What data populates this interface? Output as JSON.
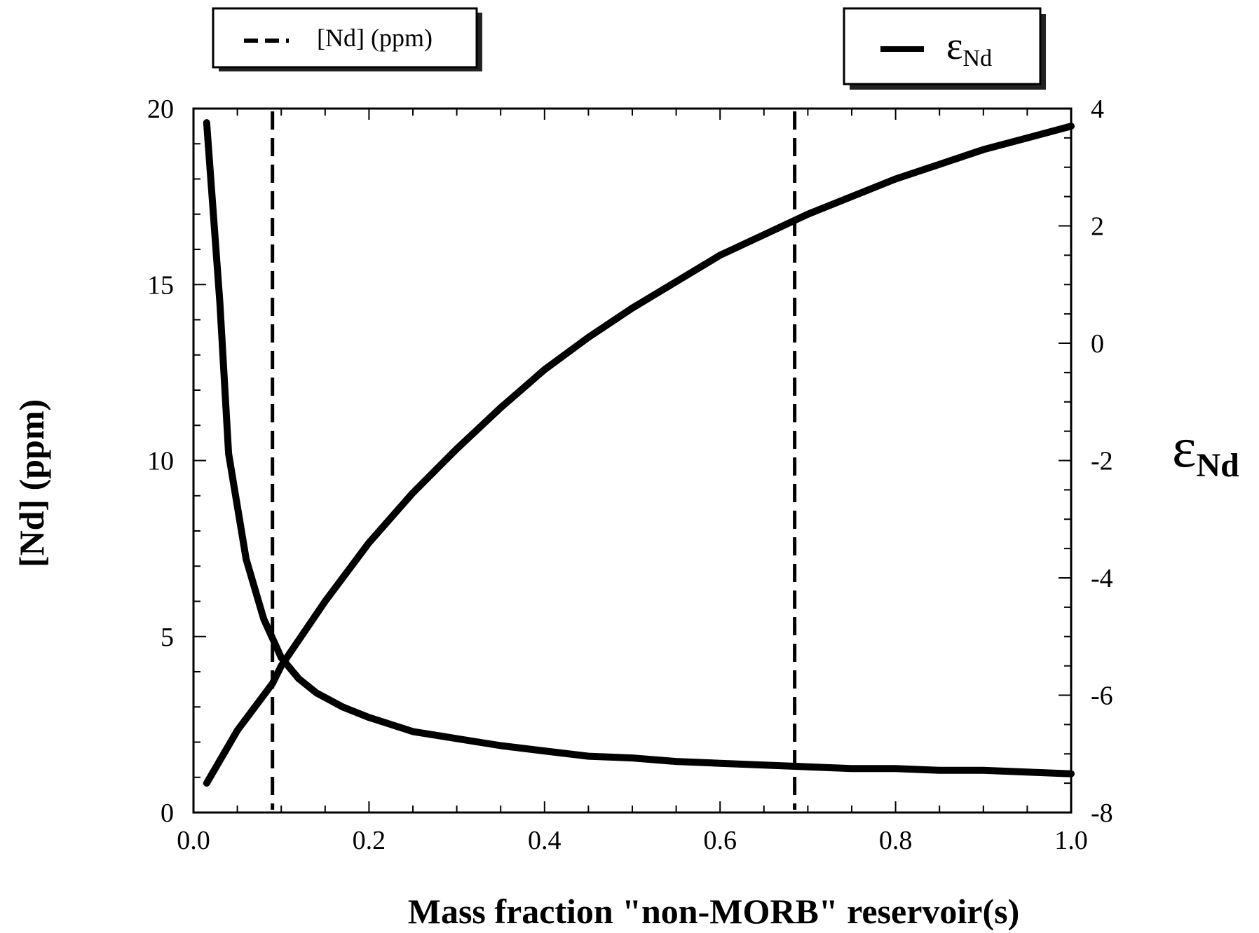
{
  "chart_data": {
    "type": "line",
    "xlabel": "Mass fraction \"non-MORB\" reservoir(s)",
    "ylabel_left": "[Nd] (ppm)",
    "ylabel_right_base": "ε",
    "ylabel_right_sub": "Nd",
    "xlim": [
      0.0,
      1.0
    ],
    "ylim_left": [
      0,
      20
    ],
    "ylim_right": [
      -8,
      4
    ],
    "x_ticks": [
      "0.0",
      "0.2",
      "0.4",
      "0.6",
      "0.8",
      "1.0"
    ],
    "x_tick_values": [
      0.0,
      0.2,
      0.4,
      0.6,
      0.8,
      1.0
    ],
    "y_left_ticks": [
      "0",
      "5",
      "10",
      "15",
      "20"
    ],
    "y_left_tick_values": [
      0,
      5,
      10,
      15,
      20
    ],
    "y_right_ticks": [
      "-8",
      "-6",
      "-4",
      "-2",
      "0",
      "2",
      "4"
    ],
    "y_right_tick_values": [
      -8,
      -6,
      -4,
      -2,
      0,
      2,
      4
    ],
    "legend_left": {
      "label": "[Nd] (ppm)",
      "position": "top-left"
    },
    "legend_right": {
      "label_base": "ε",
      "label_sub": "Nd",
      "position": "top-right"
    },
    "grid": false,
    "series": [
      {
        "name": "[Nd] (ppm)",
        "axis": "left",
        "x": [
          0.015,
          0.03,
          0.04,
          0.05,
          0.06,
          0.08,
          0.1,
          0.12,
          0.14,
          0.17,
          0.2,
          0.25,
          0.3,
          0.35,
          0.4,
          0.45,
          0.5,
          0.55,
          0.6,
          0.65,
          0.7,
          0.75,
          0.8,
          0.85,
          0.9,
          0.95,
          1.0
        ],
        "values": [
          19.6,
          14.5,
          10.2,
          8.7,
          7.2,
          5.5,
          4.4,
          3.8,
          3.4,
          3.0,
          2.7,
          2.3,
          2.1,
          1.9,
          1.75,
          1.6,
          1.55,
          1.45,
          1.4,
          1.35,
          1.3,
          1.25,
          1.25,
          1.2,
          1.2,
          1.15,
          1.1
        ]
      },
      {
        "name": "εNd",
        "axis": "right",
        "x": [
          0.015,
          0.05,
          0.09,
          0.1,
          0.15,
          0.2,
          0.25,
          0.3,
          0.35,
          0.4,
          0.45,
          0.5,
          0.55,
          0.6,
          0.65,
          0.7,
          0.75,
          0.8,
          0.85,
          0.9,
          0.95,
          1.0
        ],
        "values": [
          -7.5,
          -6.6,
          -5.8,
          -5.5,
          -4.4,
          -3.4,
          -2.55,
          -1.8,
          -1.1,
          -0.45,
          0.1,
          0.6,
          1.05,
          1.5,
          1.85,
          2.2,
          2.5,
          2.8,
          3.05,
          3.3,
          3.5,
          3.7
        ]
      }
    ],
    "vertical_reference_lines": [
      0.09,
      0.685
    ]
  }
}
